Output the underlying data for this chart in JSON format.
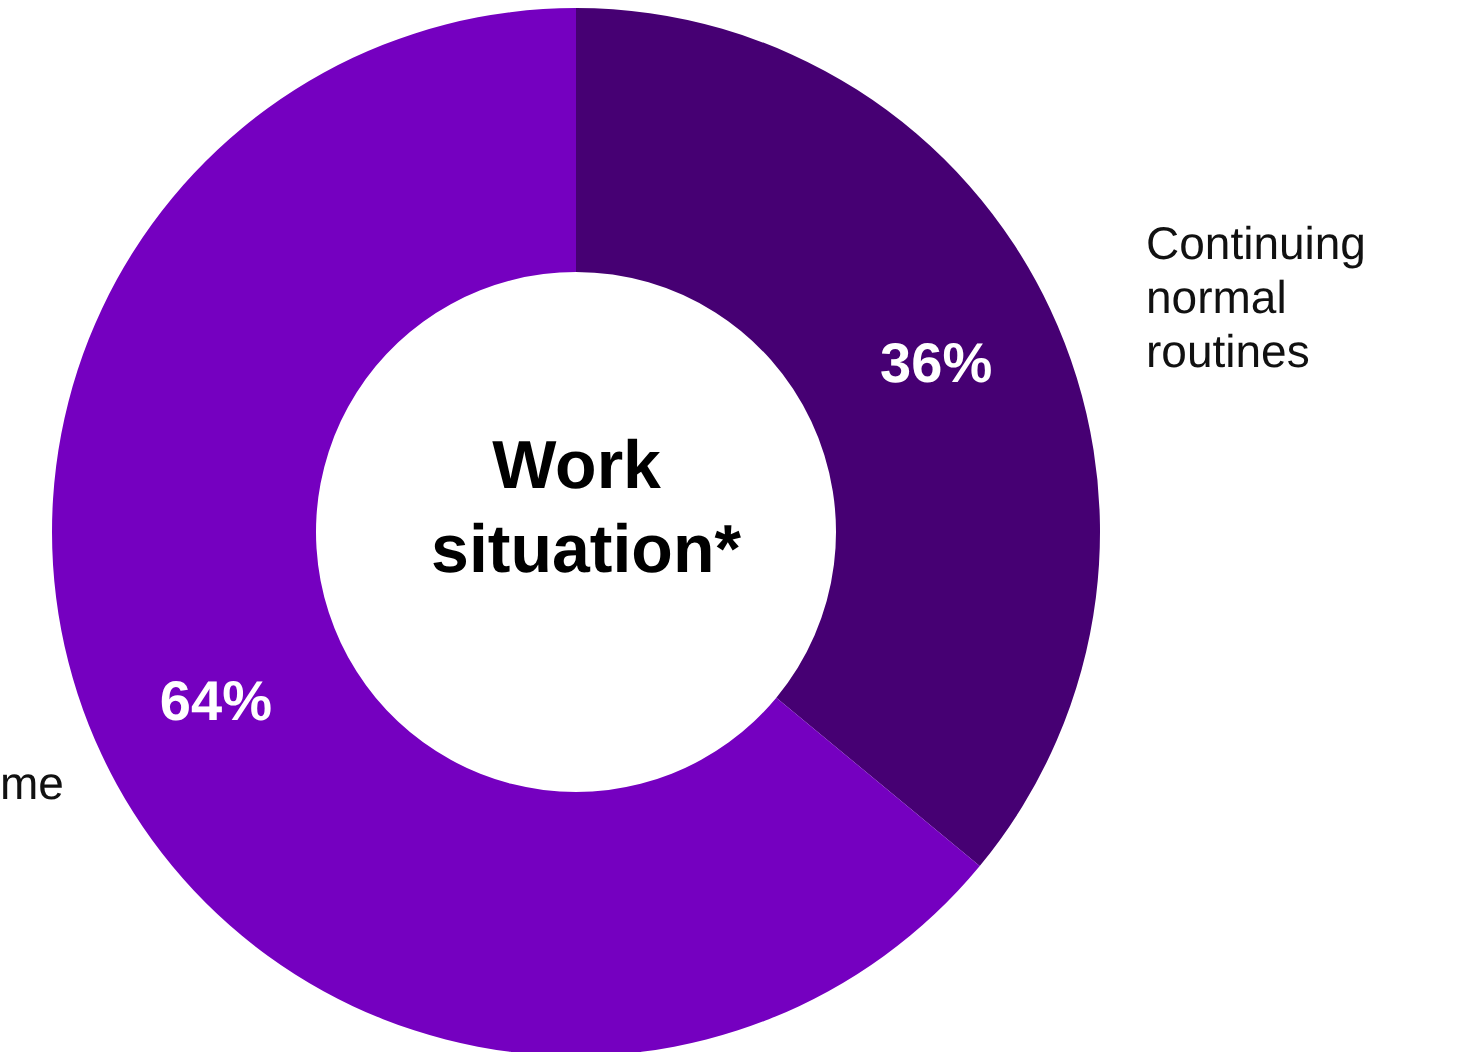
{
  "chart_data": {
    "type": "donut",
    "title": "Work situation*",
    "categories": [
      "Continuing normal routines",
      "me"
    ],
    "values": [
      36,
      64
    ],
    "colors": [
      "#460073",
      "#7500c0"
    ],
    "value_labels": [
      "36%",
      "64%"
    ],
    "legend": false
  }
}
